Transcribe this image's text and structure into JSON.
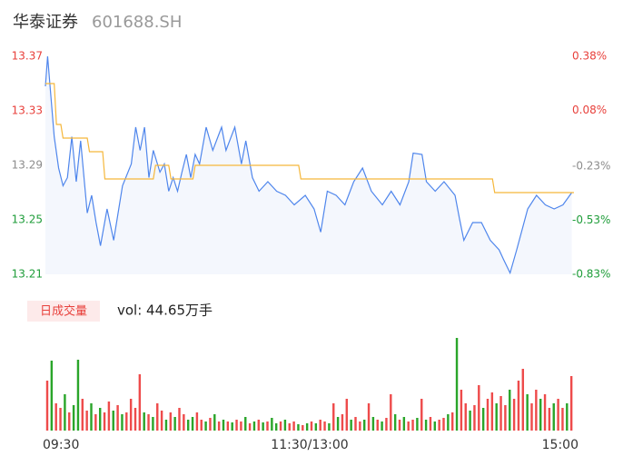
{
  "header": {
    "name": "华泰证券",
    "code": "601688.SH"
  },
  "chart_data": [
    {
      "type": "line",
      "xlim": [
        0,
        240
      ],
      "ylim": [
        13.21,
        13.37
      ],
      "yticks": [
        13.37,
        13.33,
        13.29,
        13.25,
        13.21
      ],
      "ytick_colors": [
        "#e8413c",
        "#e8413c",
        "#8c8c8c",
        "#1f9d3a",
        "#1f9d3a"
      ],
      "y2lim": [
        0.38,
        -0.83
      ],
      "y2ticks": [
        {
          "value": 0.38,
          "label": "0.38%"
        },
        {
          "value": 0.08,
          "label": "0.08%"
        },
        {
          "value": -0.23,
          "label": "-0.23%"
        },
        {
          "value": -0.53,
          "label": "-0.53%"
        },
        {
          "value": -0.83,
          "label": "-0.83%"
        }
      ],
      "y2tick_colors": [
        "#e8413c",
        "#e8413c",
        "#8c8c8c",
        "#1f9d3a",
        "#1f9d3a"
      ],
      "area_color": "#f4f7fd",
      "series": [
        {
          "color": "#4f86ec",
          "x": [
            0,
            1,
            4,
            6,
            8,
            10,
            12,
            14,
            16,
            19,
            21,
            23,
            25,
            28,
            31,
            33,
            35,
            39,
            41,
            43,
            45,
            47,
            49,
            52,
            54,
            56,
            58,
            60,
            62,
            64,
            66,
            68,
            70,
            73,
            76,
            80,
            82,
            86,
            89,
            91,
            94,
            97,
            101,
            105,
            109,
            113,
            118,
            122,
            125,
            128,
            132,
            136,
            140,
            144,
            148,
            153,
            157,
            161,
            165,
            167,
            171,
            173,
            177,
            181,
            186,
            188,
            190,
            194,
            198,
            202,
            206,
            208,
            211,
            214,
            219,
            223,
            227,
            231,
            235,
            239
          ],
          "values": [
            13.348,
            13.37,
            13.311,
            13.288,
            13.275,
            13.281,
            13.311,
            13.278,
            13.308,
            13.255,
            13.268,
            13.248,
            13.231,
            13.258,
            13.235,
            13.255,
            13.275,
            13.291,
            13.318,
            13.301,
            13.318,
            13.281,
            13.301,
            13.285,
            13.291,
            13.271,
            13.281,
            13.271,
            13.285,
            13.298,
            13.281,
            13.298,
            13.291,
            13.318,
            13.301,
            13.318,
            13.301,
            13.318,
            13.291,
            13.308,
            13.281,
            13.271,
            13.278,
            13.271,
            13.268,
            13.261,
            13.268,
            13.258,
            13.241,
            13.271,
            13.268,
            13.261,
            13.278,
            13.288,
            13.271,
            13.261,
            13.271,
            13.261,
            13.278,
            13.299,
            13.298,
            13.278,
            13.271,
            13.278,
            13.268,
            13.251,
            13.235,
            13.248,
            13.248,
            13.235,
            13.228,
            13.221,
            13.211,
            13.228,
            13.258,
            13.268,
            13.261,
            13.258,
            13.261,
            13.27
          ]
        },
        {
          "color": "#f5b73b",
          "x": [
            0,
            4,
            5,
            7,
            8,
            19,
            20,
            26,
            27,
            49,
            50,
            56,
            57,
            67,
            68,
            115,
            116,
            203,
            204,
            240
          ],
          "values": [
            13.35,
            13.35,
            13.32,
            13.32,
            13.31,
            13.31,
            13.3,
            13.3,
            13.28,
            13.28,
            13.29,
            13.29,
            13.28,
            13.28,
            13.29,
            13.29,
            13.28,
            13.28,
            13.27,
            13.27
          ]
        }
      ]
    },
    {
      "type": "bar",
      "badge": "日成交量",
      "title": "vol: 44.65万手",
      "xlim": [
        0,
        240
      ],
      "xticks": [
        {
          "value": 0,
          "label": "09:30"
        },
        {
          "value": 120,
          "label": "11:30/13:00"
        },
        {
          "value": 240,
          "label": "15:00"
        }
      ],
      "ylim": [
        0,
        1.04
      ],
      "up_color": "#ee4b4b",
      "down_color": "#2aa52a",
      "x": [
        0,
        2,
        4,
        6,
        8,
        10,
        12,
        14,
        16,
        18,
        20,
        22,
        24,
        26,
        28,
        30,
        32,
        34,
        36,
        38,
        40,
        42,
        44,
        46,
        48,
        50,
        52,
        54,
        56,
        58,
        60,
        62,
        64,
        66,
        68,
        70,
        72,
        74,
        76,
        78,
        80,
        82,
        84,
        86,
        88,
        90,
        92,
        94,
        96,
        98,
        100,
        102,
        104,
        106,
        108,
        110,
        112,
        114,
        116,
        118,
        120,
        122,
        124,
        126,
        128,
        130,
        132,
        134,
        136,
        138,
        140,
        142,
        144,
        146,
        148,
        150,
        152,
        154,
        156,
        158,
        160,
        162,
        164,
        166,
        168,
        170,
        172,
        174,
        176,
        178,
        180,
        182,
        184,
        186,
        188,
        190,
        192,
        194,
        196,
        198,
        200,
        202,
        204,
        206,
        208,
        210,
        212,
        214,
        216,
        218,
        220,
        222,
        224,
        226,
        228,
        230,
        232,
        234,
        236,
        238
      ],
      "values": [
        0.55,
        0.77,
        0.3,
        0.25,
        0.4,
        0.2,
        0.28,
        0.78,
        0.35,
        0.22,
        0.3,
        0.18,
        0.25,
        0.2,
        0.32,
        0.22,
        0.28,
        0.18,
        0.2,
        0.35,
        0.25,
        0.62,
        0.2,
        0.18,
        0.15,
        0.3,
        0.22,
        0.12,
        0.2,
        0.15,
        0.25,
        0.18,
        0.12,
        0.15,
        0.2,
        0.12,
        0.1,
        0.14,
        0.18,
        0.1,
        0.12,
        0.1,
        0.09,
        0.12,
        0.1,
        0.15,
        0.08,
        0.1,
        0.12,
        0.09,
        0.1,
        0.14,
        0.08,
        0.1,
        0.12,
        0.08,
        0.1,
        0.07,
        0.06,
        0.08,
        0.1,
        0.08,
        0.12,
        0.1,
        0.08,
        0.3,
        0.15,
        0.18,
        0.35,
        0.12,
        0.15,
        0.1,
        0.12,
        0.3,
        0.15,
        0.12,
        0.1,
        0.14,
        0.4,
        0.18,
        0.12,
        0.15,
        0.1,
        0.12,
        0.14,
        0.35,
        0.12,
        0.15,
        0.1,
        0.12,
        0.14,
        0.18,
        0.2,
        1.02,
        0.45,
        0.3,
        0.22,
        0.28,
        0.5,
        0.25,
        0.35,
        0.42,
        0.3,
        0.38,
        0.28,
        0.45,
        0.35,
        0.55,
        0.68,
        0.4,
        0.3,
        0.45,
        0.35,
        0.4,
        0.25,
        0.3,
        0.35,
        0.25,
        0.3,
        0.6
      ],
      "up": [
        true,
        false,
        true,
        true,
        false,
        true,
        false,
        false,
        true,
        true,
        false,
        true,
        false,
        true,
        true,
        false,
        true,
        false,
        true,
        true,
        true,
        true,
        false,
        true,
        false,
        true,
        true,
        false,
        true,
        false,
        true,
        true,
        false,
        false,
        true,
        true,
        false,
        true,
        false,
        true,
        false,
        true,
        false,
        true,
        true,
        false,
        true,
        false,
        true,
        false,
        true,
        false,
        false,
        true,
        false,
        true,
        true,
        false,
        true,
        false,
        true,
        false,
        true,
        true,
        false,
        true,
        false,
        true,
        true,
        false,
        true,
        true,
        false,
        true,
        false,
        true,
        false,
        true,
        true,
        false,
        true,
        false,
        true,
        true,
        false,
        true,
        false,
        true,
        false,
        true,
        true,
        false,
        true,
        false,
        true,
        true,
        false,
        true,
        true,
        false,
        true,
        true,
        false,
        true,
        true,
        false,
        true,
        true,
        true,
        false,
        true,
        true,
        false,
        true,
        true,
        false,
        true,
        true,
        false,
        true
      ]
    }
  ]
}
